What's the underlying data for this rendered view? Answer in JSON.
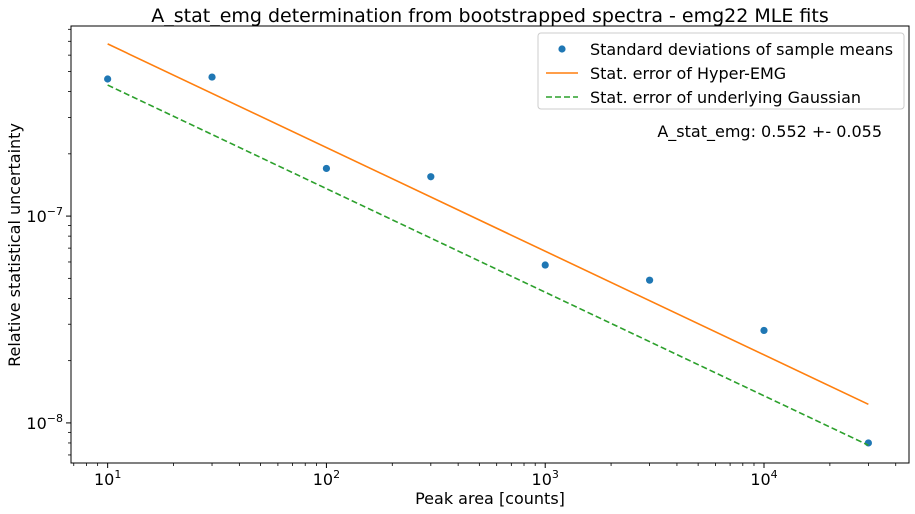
{
  "chart_data": {
    "type": "scatter",
    "title": "A_stat_emg determination from bootstrapped spectra - emg22 MLE fits",
    "xlabel": "Peak area [counts]",
    "ylabel": "Relative statistical uncertainty",
    "xscale": "log",
    "yscale": "log",
    "xlim": [
      6.8,
      46000
    ],
    "ylim": [
      6.4e-09,
      8.3e-07
    ],
    "x_ticks": [
      {
        "value": 10,
        "base": "10",
        "exp": "1"
      },
      {
        "value": 100,
        "base": "10",
        "exp": "2"
      },
      {
        "value": 1000,
        "base": "10",
        "exp": "3"
      },
      {
        "value": 10000,
        "base": "10",
        "exp": "4"
      }
    ],
    "y_ticks": [
      {
        "value": 1e-08,
        "base": "10",
        "exp": "−8"
      },
      {
        "value": 1e-07,
        "base": "10",
        "exp": "−7"
      }
    ],
    "series": [
      {
        "name": "Standard deviations of sample means",
        "kind": "scatter",
        "color": "#1f77b4",
        "x": [
          10,
          30,
          100,
          300,
          1000,
          3000,
          10000,
          30000
        ],
        "y": [
          4.6e-07,
          4.7e-07,
          1.7e-07,
          1.55e-07,
          5.8e-08,
          4.9e-08,
          2.8e-08,
          8e-09
        ]
      },
      {
        "name": "Stat. error of Hyper-EMG",
        "kind": "line",
        "color": "#ff7f0e",
        "x": [
          10,
          30000
        ],
        "y": [
          6.8e-07,
          1.23e-08
        ]
      },
      {
        "name": "Stat. error of underlying Gaussian",
        "kind": "dashed",
        "color": "#2ca02c",
        "x": [
          10,
          30000
        ],
        "y": [
          4.3e-07,
          7.8e-09
        ]
      }
    ],
    "legend": "top-right",
    "annotation": "A_stat_emg: 0.552 +- 0.055",
    "grid": false
  }
}
